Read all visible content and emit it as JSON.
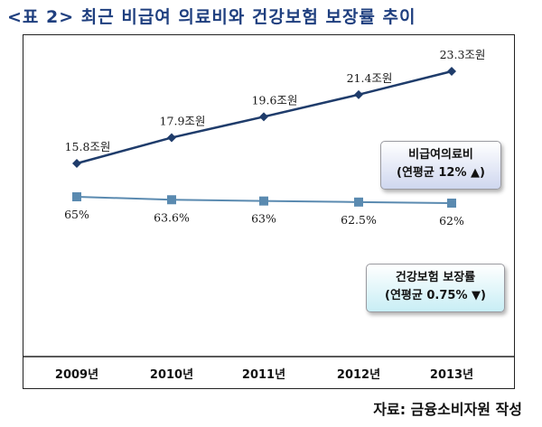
{
  "title": "<표 2> 최근 비급여 의료비와 건강보험 보장률 추이",
  "source": "자료: 금융소비자원 작성",
  "chart_data": {
    "type": "line",
    "categories": [
      "2009년",
      "2010년",
      "2011년",
      "2012년",
      "2013년"
    ],
    "series": [
      {
        "name": "비급여의료비",
        "values": [
          15.8,
          17.9,
          19.6,
          21.4,
          23.3
        ],
        "labels": [
          "15.8조원",
          "17.9조원",
          "19.6조원",
          "21.4조원",
          "23.3조원"
        ],
        "legend_sub": "(연평균 12% ▲)",
        "color": "#1f3c6b",
        "marker": "diamond"
      },
      {
        "name": "건강보험 보장률",
        "values": [
          65,
          63.6,
          63,
          62.5,
          62
        ],
        "labels": [
          "65%",
          "63.6%",
          "63%",
          "62.5%",
          "62%"
        ],
        "legend_sub": "(연평균 0.75% ▼)",
        "color": "#5a8ab0",
        "marker": "square"
      }
    ],
    "grid": false,
    "legend_placement": "right"
  }
}
